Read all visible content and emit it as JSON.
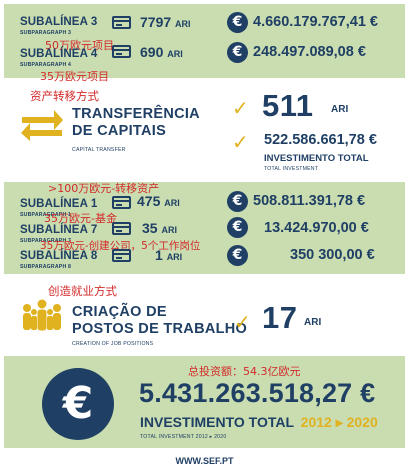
{
  "rows_top": [
    {
      "title": "SUBALÍNEA 3",
      "en": "SUBPARAGRAPH 3",
      "count": "7797",
      "unit": "ARI",
      "amount": "4.660.179.767,41 €"
    },
    {
      "title": "SUBALÍNEA 4",
      "en": "SUBPARAGRAPH 4",
      "count": "690",
      "unit": "ARI",
      "amount": "248.497.089,08 €"
    }
  ],
  "notes": {
    "n1": "50万欧元项目",
    "n2": "35万欧元项目",
    "n3": "资产转移方式",
    "n4": ">100万欧元-转移资产",
    "n5": "35万欧元-基金",
    "n6": "35万欧元-创建公司，5个工作岗位",
    "n7": "创造就业方式",
    "n8": "总投资额：54.3亿欧元"
  },
  "transfer": {
    "title_line1": "TRANSFERÊNCIA",
    "title_line2": "DE CAPITAIS",
    "en": "CAPITAL TRANSFER",
    "count": "511",
    "unit": "ARI",
    "amount": "522.586.661,78 €",
    "invest_label": "INVESTIMENTO TOTAL",
    "invest_en": "TOTAL INVESTMENT"
  },
  "rows_mid": [
    {
      "title": "SUBALÍNEA 1",
      "en": "SUBPARAGRAPH 1",
      "count": "475",
      "unit": "ARI",
      "amount": "508.811.391,78 €"
    },
    {
      "title": "SUBALÍNEA 7",
      "en": "SUBPARAGRAPH 7",
      "count": "35",
      "unit": "ARI",
      "amount": "13.424.970,00 €"
    },
    {
      "title": "SUBALÍNEA 8",
      "en": "SUBPARAGRAPH 8",
      "count": "1",
      "unit": "ARI",
      "amount": "350 300,00 €"
    }
  ],
  "jobs": {
    "title_line1": "CRIAÇÃO DE",
    "title_line2": "POSTOS DE TRABALHO",
    "en": "CREATION OF JOB POSITIONS",
    "count": "17",
    "unit": "ARI"
  },
  "total": {
    "amount": "5.431.263.518,27 €",
    "label": "INVESTIMENTO TOTAL",
    "years": "2012 ▸ 2020",
    "en": "TOTAL INVESTMENT 2012 ▸ 2020",
    "euro_symbol": "€"
  },
  "footer": {
    "url": "WWW.SEF.PT"
  },
  "colors": {
    "green": "#c9ddb1",
    "navy": "#1f3f64",
    "gold": "#e0b21f",
    "red": "#d32a2a"
  }
}
